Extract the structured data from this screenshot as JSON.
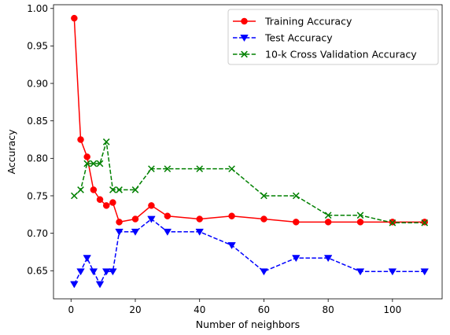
{
  "chart_data": {
    "type": "line",
    "xlabel": "Number of neighbors",
    "ylabel": "Accuracy",
    "xlim": [
      -5.45,
      115.45
    ],
    "ylim": [
      0.6125,
      1.005
    ],
    "xticks": [
      0,
      20,
      40,
      60,
      80,
      100
    ],
    "yticks": [
      0.65,
      0.7,
      0.75,
      0.8,
      0.85,
      0.9,
      0.95,
      1.0
    ],
    "grid": false,
    "legend_position": "top-right",
    "x": [
      1,
      3,
      5,
      7,
      9,
      11,
      13,
      15,
      20,
      25,
      30,
      40,
      50,
      60,
      70,
      80,
      90,
      100,
      110
    ],
    "series": [
      {
        "name": "Training Accuracy",
        "color": "#ff0000",
        "linestyle": "solid",
        "marker": "circle",
        "values": [
          0.987,
          0.825,
          0.802,
          0.758,
          0.745,
          0.737,
          0.741,
          0.715,
          0.719,
          0.737,
          0.723,
          0.719,
          0.723,
          0.719,
          0.715,
          0.715,
          0.715,
          0.715,
          0.715
        ]
      },
      {
        "name": "Test Accuracy",
        "color": "#0000ff",
        "linestyle": "dashed",
        "marker": "triangle-down",
        "values": [
          0.632,
          0.649,
          0.667,
          0.649,
          0.632,
          0.649,
          0.649,
          0.702,
          0.702,
          0.719,
          0.702,
          0.702,
          0.684,
          0.649,
          0.667,
          0.667,
          0.649,
          0.649,
          0.649
        ]
      },
      {
        "name": "10-k Cross Validation Accuracy",
        "color": "#008000",
        "linestyle": "dashed",
        "marker": "x",
        "values": [
          0.75,
          0.758,
          0.793,
          0.793,
          0.793,
          0.822,
          0.758,
          0.758,
          0.758,
          0.786,
          0.786,
          0.786,
          0.786,
          0.75,
          0.75,
          0.724,
          0.724,
          0.714,
          0.714
        ]
      }
    ]
  }
}
